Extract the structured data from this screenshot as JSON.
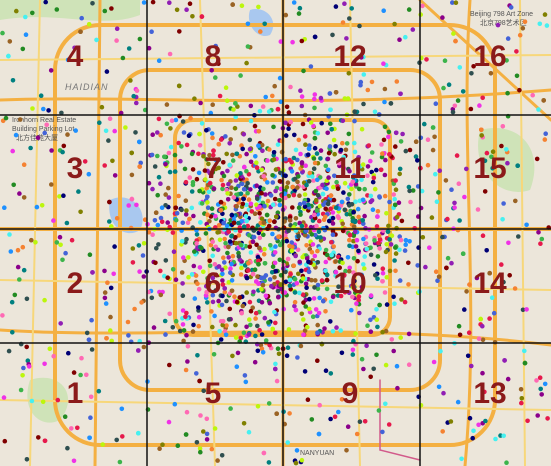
{
  "map": {
    "cells": [
      "1",
      "2",
      "3",
      "4",
      "5",
      "6",
      "7",
      "8",
      "9",
      "10",
      "11",
      "12",
      "13",
      "14",
      "15",
      "16"
    ],
    "places": [
      "HAIDIAN",
      "Beijing 798 Art Zone",
      "北京798艺术区",
      "Ironhorn Real Estate",
      "Building Parking Lot",
      "北方佳苑大厦",
      "NANYUAN"
    ]
  }
}
